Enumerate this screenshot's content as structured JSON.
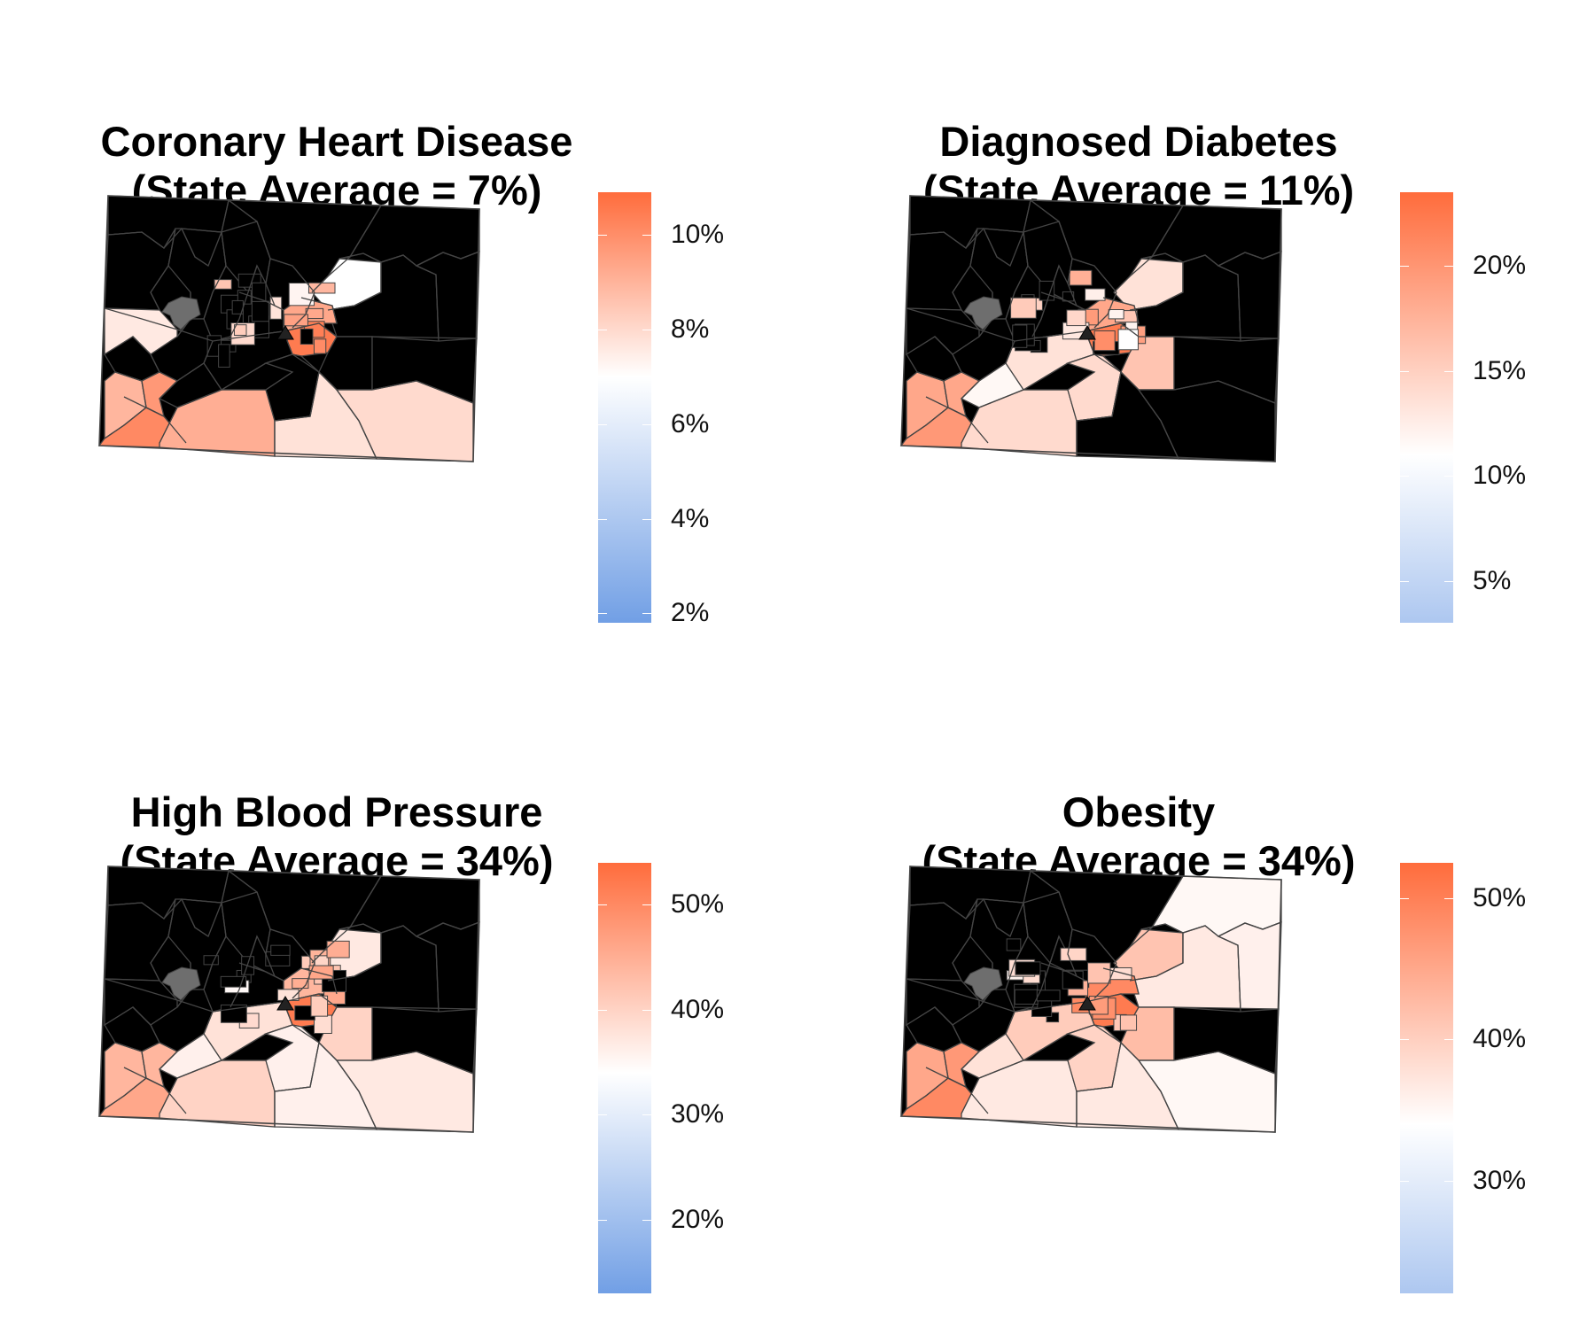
{
  "colors": {
    "low": "#6a9ae4",
    "mid": "#ffffff",
    "high": "#ff6c3c",
    "border": "#444444",
    "excluded": "#6e6e6e",
    "marker": "#222222"
  },
  "panels": [
    {
      "title_line1": "Coronary Heart Disease",
      "title_line2": "(State Average = 7%)",
      "state_average": 7,
      "legend": {
        "min": 1.8,
        "max": 10.9,
        "ticks": [
          {
            "value": 2,
            "label": "2%"
          },
          {
            "value": 4,
            "label": "4%"
          },
          {
            "value": 6,
            "label": "6%"
          },
          {
            "value": 8,
            "label": "8%"
          },
          {
            "value": 10,
            "label": "10%"
          }
        ]
      },
      "low_fraction": 0.05
    },
    {
      "title_line1": "Diagnosed Diabetes",
      "title_line2": "(State Average = 11%)",
      "state_average": 11,
      "legend": {
        "min": 3,
        "max": 23.5,
        "ticks": [
          {
            "value": 5,
            "label": "5%"
          },
          {
            "value": 10,
            "label": "10%"
          },
          {
            "value": 15,
            "label": "15%"
          },
          {
            "value": 20,
            "label": "20%"
          }
        ]
      },
      "low_fraction": 0.45
    },
    {
      "title_line1": "High Blood Pressure",
      "title_line2": "(State Average = 34%)",
      "state_average": 34,
      "legend": {
        "min": 13,
        "max": 54,
        "ticks": [
          {
            "value": 20,
            "label": "20%"
          },
          {
            "value": 30,
            "label": "30%"
          },
          {
            "value": 40,
            "label": "40%"
          },
          {
            "value": 50,
            "label": "50%"
          }
        ]
      },
      "low_fraction": 0.05
    },
    {
      "title_line1": "Obesity",
      "title_line2": "(State Average = 34%)",
      "state_average": 34,
      "legend": {
        "min": 22,
        "max": 52.5,
        "ticks": [
          {
            "value": 30,
            "label": "30%"
          },
          {
            "value": 40,
            "label": "40%"
          },
          {
            "value": 50,
            "label": "50%"
          }
        ]
      },
      "low_fraction": 0.45
    }
  ]
}
